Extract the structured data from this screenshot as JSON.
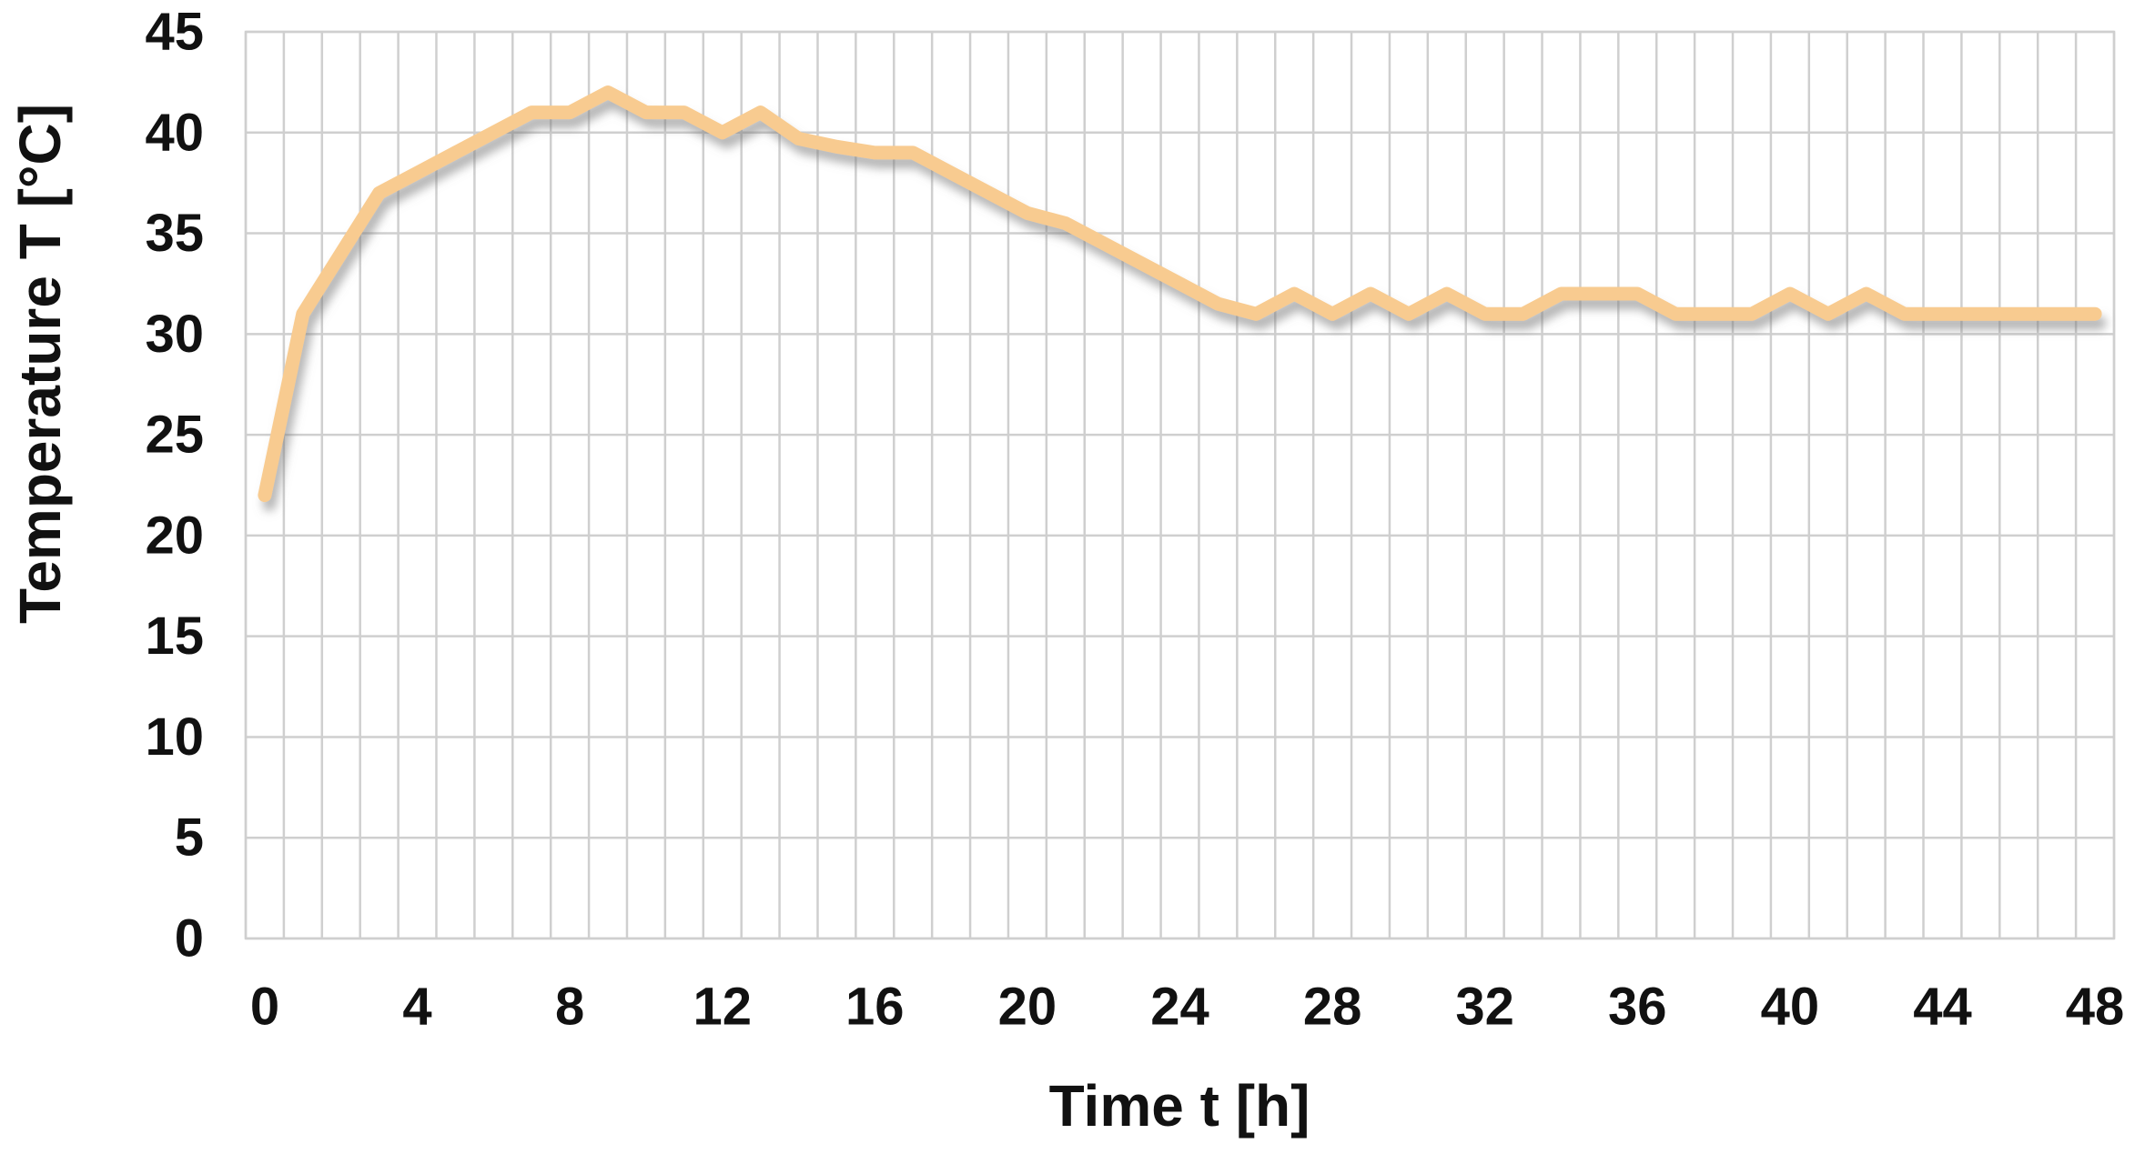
{
  "chart_data": {
    "type": "line",
    "title": "",
    "xlabel": "Time t [h]",
    "ylabel": "Temperature T [°C]",
    "x": [
      0,
      1,
      2,
      3,
      4,
      5,
      6,
      7,
      8,
      9,
      10,
      11,
      12,
      13,
      14,
      15,
      16,
      17,
      18,
      19,
      20,
      21,
      22,
      23,
      24,
      25,
      26,
      27,
      28,
      29,
      30,
      31,
      32,
      33,
      34,
      35,
      36,
      37,
      38,
      39,
      40,
      41,
      42,
      43,
      44,
      45,
      46,
      47,
      48
    ],
    "series": [
      {
        "name": "Temperature",
        "values": [
          22,
          31,
          34,
          37,
          38,
          39,
          40,
          41,
          41,
          42,
          41,
          41,
          40,
          41,
          39.7,
          39.3,
          39,
          39,
          38,
          37,
          36,
          35.5,
          34.5,
          33.5,
          32.5,
          31.5,
          31,
          32,
          31,
          32,
          31,
          32,
          31,
          31,
          32,
          32,
          32,
          31,
          31,
          31,
          32,
          31,
          32,
          31,
          31,
          31,
          31,
          31,
          31
        ]
      }
    ],
    "xlim": [
      0,
      48
    ],
    "ylim": [
      0,
      45
    ],
    "xticks": [
      0,
      4,
      8,
      12,
      16,
      20,
      24,
      28,
      32,
      36,
      40,
      44,
      48
    ],
    "yticks": [
      0,
      5,
      10,
      15,
      20,
      25,
      30,
      35,
      40,
      45
    ],
    "x_gridline_interval_hours": 1,
    "y_gridline_interval_degrees": 5,
    "grid": "on",
    "legend_position": "none",
    "line_color": "#F8CB90",
    "line_shadow_color": "#7a7a7a",
    "grid_color": "#CFCFCF",
    "axis_text_color": "#111111",
    "background_color": "#FFFFFF",
    "line_has_drop_shadow": true
  }
}
